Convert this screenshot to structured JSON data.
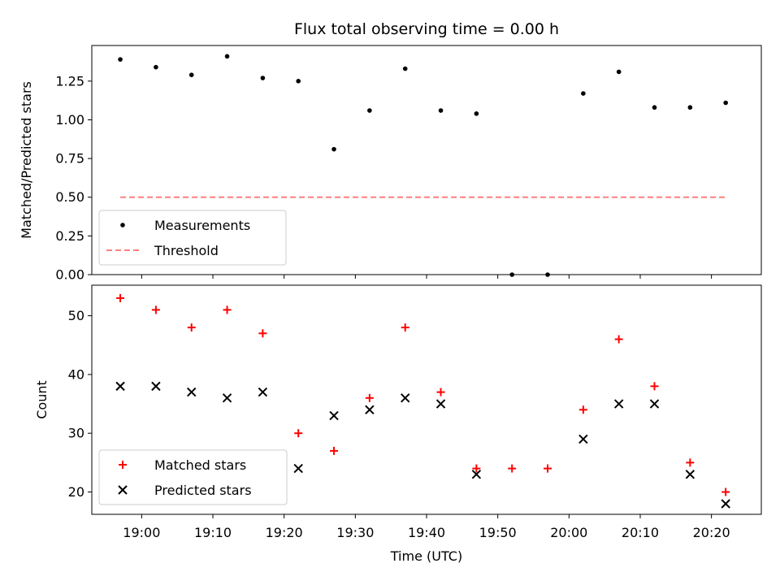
{
  "chart_data": [
    {
      "type": "scatter",
      "title": "Flux total observing time = 0.00 h",
      "xlabel": "",
      "ylabel": "Matched/Predicted stars",
      "xlim": [
        "18:53",
        "20:27"
      ],
      "ylim": [
        0,
        1.48
      ],
      "yticks": [
        0.0,
        0.25,
        0.5,
        0.75,
        1.0,
        1.25
      ],
      "ytick_labels": [
        "0.00",
        "0.25",
        "0.50",
        "0.75",
        "1.00",
        "1.25"
      ],
      "grid": false,
      "legend": "lower-left",
      "series": [
        {
          "name": "Measurements",
          "marker": "dot",
          "color": "#000000",
          "x": [
            "18:57",
            "19:02",
            "19:07",
            "19:12",
            "19:17",
            "19:22",
            "19:27",
            "19:32",
            "19:37",
            "19:42",
            "19:47",
            "19:52",
            "19:57",
            "20:02",
            "20:07",
            "20:12",
            "20:17",
            "20:22"
          ],
          "y": [
            1.39,
            1.34,
            1.29,
            1.41,
            1.27,
            1.25,
            0.81,
            1.06,
            1.33,
            1.06,
            1.04,
            0.0,
            0.0,
            1.17,
            1.31,
            1.08,
            1.08,
            1.11
          ]
        },
        {
          "name": "Threshold",
          "marker": "dashed-line",
          "color": "#ff7f7f",
          "x": [
            "18:57",
            "20:22"
          ],
          "y": [
            0.5,
            0.5
          ]
        }
      ]
    },
    {
      "type": "scatter",
      "title": "",
      "xlabel": "Time (UTC)",
      "ylabel": "Count",
      "xlim": [
        "18:53",
        "20:27"
      ],
      "ylim": [
        16.2,
        55.2
      ],
      "xticks": [
        "19:00",
        "19:10",
        "19:20",
        "19:30",
        "19:40",
        "19:50",
        "20:00",
        "20:10",
        "20:20"
      ],
      "yticks": [
        20,
        30,
        40,
        50
      ],
      "grid": false,
      "legend": "lower-left",
      "series": [
        {
          "name": "Matched stars",
          "marker": "plus",
          "color": "#ff0000",
          "x": [
            "18:57",
            "19:02",
            "19:07",
            "19:12",
            "19:17",
            "19:22",
            "19:27",
            "19:32",
            "19:37",
            "19:42",
            "19:47",
            "19:52",
            "19:57",
            "20:02",
            "20:07",
            "20:12",
            "20:17",
            "20:22"
          ],
          "y": [
            53,
            51,
            48,
            51,
            47,
            30,
            27,
            36,
            48,
            37,
            24,
            24,
            24,
            34,
            46,
            38,
            25,
            20
          ]
        },
        {
          "name": "Predicted stars",
          "marker": "x",
          "color": "#000000",
          "x": [
            "18:57",
            "19:02",
            "19:07",
            "19:12",
            "19:17",
            "19:22",
            "19:27",
            "19:32",
            "19:37",
            "19:42",
            "19:47",
            "20:02",
            "20:07",
            "20:12",
            "20:17",
            "20:22"
          ],
          "y": [
            38,
            38,
            37,
            36,
            37,
            24,
            33,
            34,
            36,
            35,
            23,
            29,
            35,
            35,
            23,
            18
          ]
        }
      ]
    }
  ]
}
